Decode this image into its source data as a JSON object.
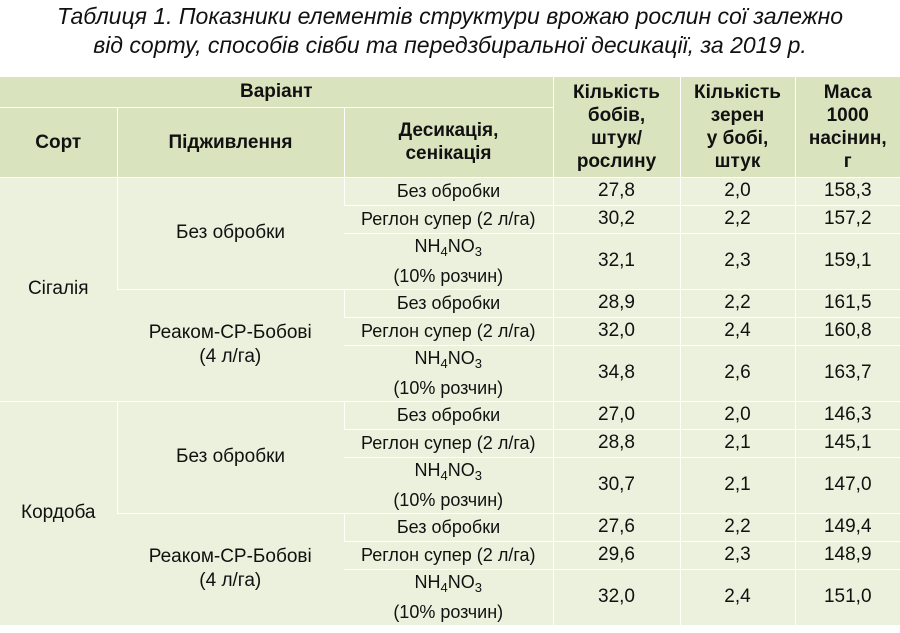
{
  "caption": {
    "line1": "Таблиця 1. Показники елементів структури врожаю рослин сої залежно",
    "line2": "від сорту, способів сівби та передзбиральної десикації, за 2019 р."
  },
  "header": {
    "variant": "Варіант",
    "sort": "Сорт",
    "feeding": "Підживлення",
    "desiccation_line1": "Десикація,",
    "desiccation_line2": "сенікація",
    "pods_l1": "Кількість",
    "pods_l2": "бобів,",
    "pods_l3": "штук/",
    "pods_l4": "рослину",
    "seeds_l1": "Кількість",
    "seeds_l2": "зерен",
    "seeds_l3": "у бобі,",
    "seeds_l4": "штук",
    "mass_l1": "Маса",
    "mass_l2": "1000",
    "mass_l3": "насінин,",
    "mass_l4": "г"
  },
  "labels": {
    "no_treatment": "Без обробки",
    "reglon": "Реглон супер (2 л/га)",
    "nh4no3_a": "NH",
    "nh4no3_sub1": "4",
    "nh4no3_b": "NO",
    "nh4no3_sub2": "3",
    "nh4no3_solution": "(10% розчин)",
    "reakom_l1": "Реаком-СР-Бобові",
    "reakom_l2": "(4 л/га)"
  },
  "sorts": [
    "Сігалія",
    "Кордоба"
  ],
  "rows": [
    [
      "27,8",
      "2,0",
      "158,3"
    ],
    [
      "30,2",
      "2,2",
      "157,2"
    ],
    [
      "32,1",
      "2,3",
      "159,1"
    ],
    [
      "28,9",
      "2,2",
      "161,5"
    ],
    [
      "32,0",
      "2,4",
      "160,8"
    ],
    [
      "34,8",
      "2,6",
      "163,7"
    ],
    [
      "27,0",
      "2,0",
      "146,3"
    ],
    [
      "28,8",
      "2,1",
      "145,1"
    ],
    [
      "30,7",
      "2,1",
      "147,0"
    ],
    [
      "27,6",
      "2,2",
      "149,4"
    ],
    [
      "29,6",
      "2,3",
      "148,9"
    ],
    [
      "32,0",
      "2,4",
      "151,0"
    ]
  ],
  "colors": {
    "header_bg": "#d9e4be",
    "body_bg": "#ebf1dc",
    "grid_lines": "#ffffff"
  }
}
